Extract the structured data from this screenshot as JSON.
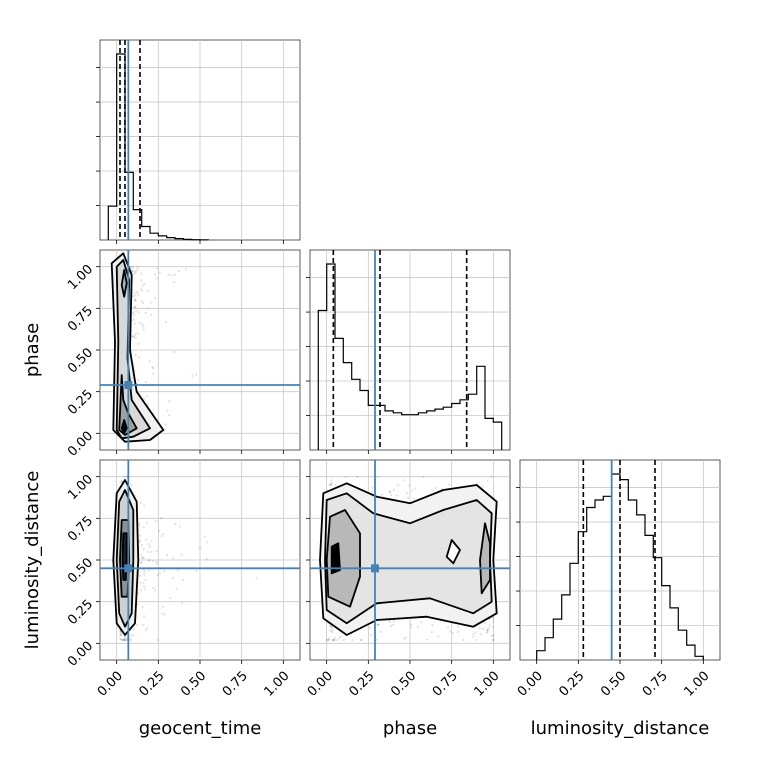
{
  "chart_data": {
    "type": "corner",
    "parameters": [
      "geocent_time",
      "phase",
      "luminosity_distance"
    ],
    "truths": {
      "geocent_time": 0.07,
      "phase": 0.29,
      "luminosity_distance": 0.45
    },
    "truth_color": "#4682b4",
    "axis_range": [
      -0.1,
      1.1
    ],
    "ticks": [
      0.0,
      0.25,
      0.5,
      0.75,
      1.0
    ],
    "tick_labels": [
      "0.00",
      "0.25",
      "0.50",
      "0.75",
      "1.00"
    ],
    "grid": true,
    "histograms": {
      "geocent_time": {
        "bin_edges": [
          -0.05,
          0.0,
          0.05,
          0.1,
          0.15,
          0.2,
          0.25,
          0.3,
          0.35,
          0.4,
          0.45,
          0.5,
          0.55
        ],
        "counts": [
          1,
          5.5,
          2.0,
          0.9,
          0.4,
          0.2,
          0.12,
          0.07,
          0.04,
          0.02,
          0.01,
          0.005
        ],
        "quantiles": [
          0.02,
          0.05,
          0.14
        ]
      },
      "phase": {
        "bin_edges": [
          -0.05,
          0.0,
          0.05,
          0.1,
          0.15,
          0.2,
          0.25,
          0.3,
          0.35,
          0.4,
          0.45,
          0.5,
          0.55,
          0.6,
          0.65,
          0.7,
          0.75,
          0.8,
          0.85,
          0.9,
          0.95,
          1.0,
          1.05
        ],
        "counts": [
          0.75,
          1.0,
          0.6,
          0.47,
          0.38,
          0.32,
          0.24,
          0.24,
          0.21,
          0.2,
          0.19,
          0.19,
          0.2,
          0.21,
          0.22,
          0.23,
          0.25,
          0.27,
          0.3,
          0.45,
          0.17,
          0.15
        ],
        "quantiles": [
          0.04,
          0.32,
          0.84
        ]
      },
      "luminosity_distance": {
        "bin_edges": [
          0.0,
          0.05,
          0.1,
          0.15,
          0.2,
          0.25,
          0.3,
          0.35,
          0.4,
          0.45,
          0.5,
          0.55,
          0.6,
          0.65,
          0.7,
          0.75,
          0.8,
          0.85,
          0.9,
          0.95,
          1.0
        ],
        "counts": [
          0.05,
          0.12,
          0.22,
          0.35,
          0.52,
          0.69,
          0.82,
          0.86,
          0.88,
          1.0,
          0.97,
          0.86,
          0.78,
          0.67,
          0.55,
          0.4,
          0.28,
          0.16,
          0.08,
          0.02
        ],
        "quantiles": [
          0.28,
          0.5,
          0.71
        ]
      }
    }
  }
}
